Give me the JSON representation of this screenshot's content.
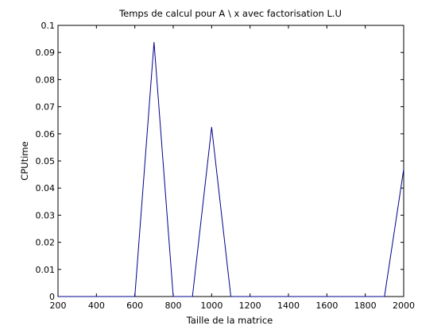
{
  "chart_data": {
    "type": "line",
    "title": "Temps de calcul pour A \\ x avec factorisation L.U",
    "xlabel": "Taille de la matrice",
    "ylabel": "CPUtime",
    "xlim": [
      200,
      2000
    ],
    "ylim": [
      0,
      0.1
    ],
    "xticks": [
      200,
      400,
      600,
      800,
      1000,
      1200,
      1400,
      1600,
      1800,
      2000
    ],
    "yticks": [
      0,
      0.01,
      0.02,
      0.03,
      0.04,
      0.05,
      0.06,
      0.07,
      0.08,
      0.09,
      0.1
    ],
    "ytick_labels": [
      "0",
      "0.01",
      "0.02",
      "0.03",
      "0.04",
      "0.05",
      "0.06",
      "0.07",
      "0.08",
      "0.09",
      "0.1"
    ],
    "grid": false,
    "series": [
      {
        "name": "CPUtime",
        "color": "#00008b",
        "x": [
          200,
          300,
          400,
          500,
          600,
          700,
          800,
          900,
          1000,
          1100,
          1200,
          1300,
          1400,
          1500,
          1600,
          1700,
          1800,
          1900,
          2000
        ],
        "y": [
          0,
          0,
          0,
          0,
          0,
          0.0938,
          0,
          0,
          0.0625,
          0,
          0,
          0,
          0,
          0,
          0,
          0,
          0,
          0,
          0.0469
        ]
      }
    ]
  }
}
